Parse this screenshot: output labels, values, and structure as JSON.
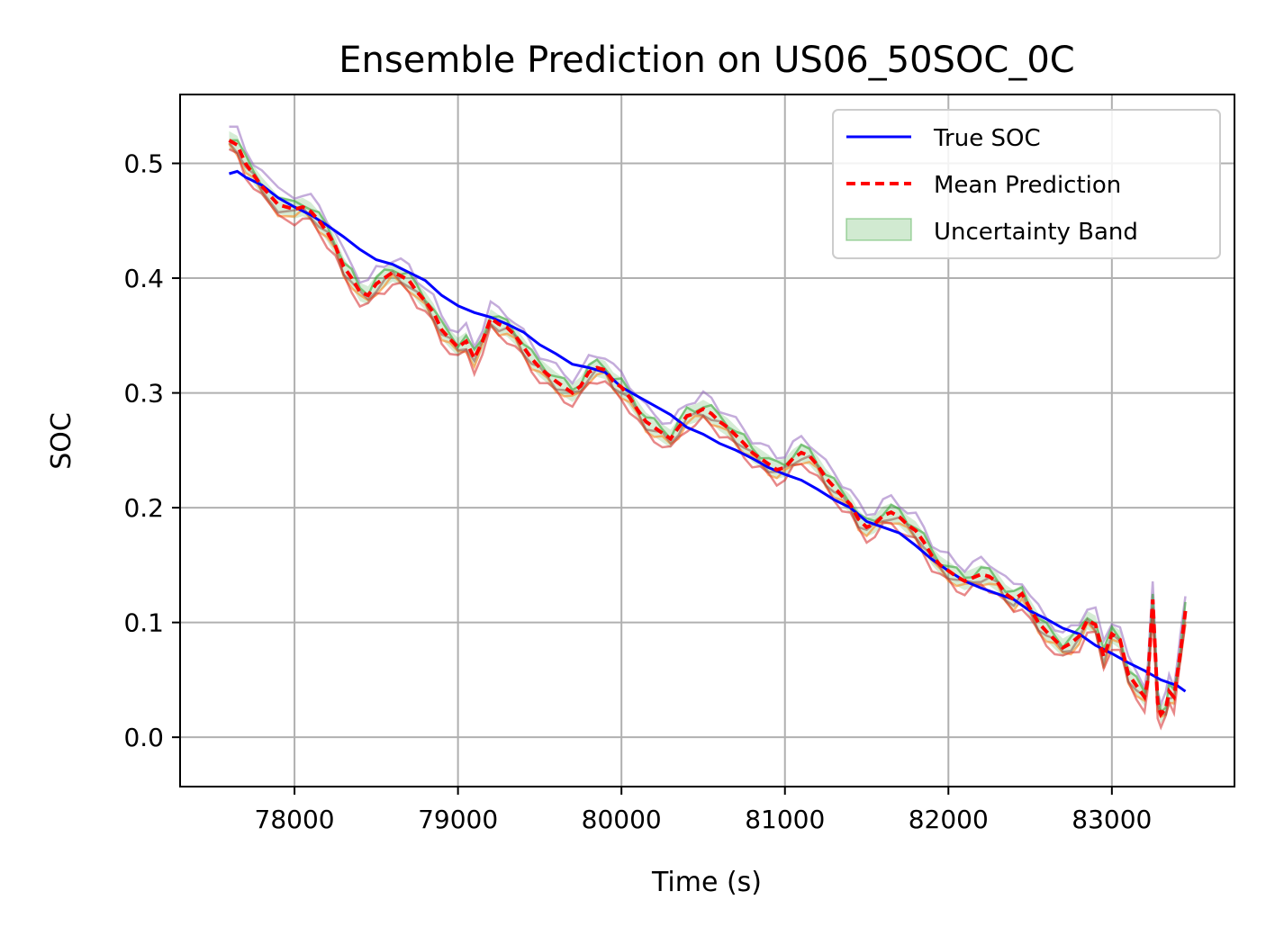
{
  "chart_data": {
    "type": "line",
    "title": "Ensemble Prediction on US06_50SOC_0C",
    "xlabel": "Time (s)",
    "ylabel": "SOC",
    "xlim": [
      77300,
      83750
    ],
    "ylim": [
      -0.043,
      0.56
    ],
    "xticks": [
      78000,
      79000,
      80000,
      81000,
      82000,
      83000
    ],
    "yticks": [
      0.0,
      0.1,
      0.2,
      0.3,
      0.4,
      0.5
    ],
    "ytick_labels": [
      "0.0",
      "0.1",
      "0.2",
      "0.3",
      "0.4",
      "0.5"
    ],
    "grid": true,
    "legend_position": "top-right",
    "legend": [
      {
        "label": "True SOC",
        "style": "solid",
        "color": "#0000ff"
      },
      {
        "label": "Mean Prediction",
        "style": "dashed",
        "color": "#ff0000"
      },
      {
        "label": "Uncertainty Band",
        "style": "patch",
        "color": "#2ca02c"
      }
    ],
    "true_soc": {
      "name": "True SOC",
      "color": "#0000ff",
      "x": [
        77600,
        77650,
        77700,
        77800,
        77900,
        78000,
        78100,
        78200,
        78300,
        78400,
        78500,
        78600,
        78700,
        78800,
        78900,
        79000,
        79100,
        79200,
        79300,
        79400,
        79500,
        79600,
        79700,
        79800,
        79900,
        80000,
        80100,
        80200,
        80300,
        80400,
        80500,
        80600,
        80700,
        80800,
        80900,
        81000,
        81100,
        81200,
        81300,
        81400,
        81500,
        81600,
        81700,
        81800,
        81900,
        82000,
        82100,
        82200,
        82300,
        82400,
        82500,
        82600,
        82700,
        82800,
        82900,
        83000,
        83100,
        83200,
        83300,
        83400,
        83450
      ],
      "y": [
        0.491,
        0.493,
        0.488,
        0.481,
        0.47,
        0.462,
        0.455,
        0.446,
        0.436,
        0.425,
        0.416,
        0.412,
        0.405,
        0.398,
        0.385,
        0.376,
        0.37,
        0.366,
        0.36,
        0.353,
        0.342,
        0.334,
        0.325,
        0.322,
        0.318,
        0.305,
        0.297,
        0.289,
        0.281,
        0.27,
        0.264,
        0.256,
        0.25,
        0.243,
        0.235,
        0.229,
        0.224,
        0.216,
        0.207,
        0.2,
        0.188,
        0.183,
        0.178,
        0.167,
        0.155,
        0.145,
        0.136,
        0.13,
        0.125,
        0.12,
        0.11,
        0.103,
        0.095,
        0.09,
        0.08,
        0.073,
        0.065,
        0.058,
        0.05,
        0.045,
        0.04
      ]
    },
    "mean_prediction": {
      "name": "Mean Prediction",
      "color": "#ff0000",
      "x": [
        77600,
        77650,
        77700,
        77750,
        77800,
        77900,
        78000,
        78050,
        78100,
        78150,
        78200,
        78250,
        78300,
        78350,
        78400,
        78450,
        78500,
        78550,
        78600,
        78650,
        78700,
        78750,
        78800,
        78850,
        78900,
        78950,
        79000,
        79050,
        79100,
        79150,
        79200,
        79250,
        79300,
        79350,
        79400,
        79450,
        79500,
        79550,
        79600,
        79650,
        79700,
        79750,
        79800,
        79850,
        79900,
        79950,
        80000,
        80050,
        80100,
        80150,
        80200,
        80250,
        80300,
        80350,
        80400,
        80450,
        80500,
        80550,
        80600,
        80650,
        80700,
        80750,
        80800,
        80850,
        80900,
        80950,
        81000,
        81050,
        81100,
        81150,
        81200,
        81250,
        81300,
        81350,
        81400,
        81450,
        81500,
        81550,
        81600,
        81650,
        81700,
        81750,
        81800,
        81850,
        81900,
        81950,
        82000,
        82050,
        82100,
        82150,
        82200,
        82250,
        82300,
        82350,
        82400,
        82450,
        82500,
        82550,
        82600,
        82650,
        82700,
        82750,
        82800,
        82850,
        82900,
        82950,
        83000,
        83050,
        83100,
        83150,
        83200,
        83220,
        83250,
        83280,
        83300,
        83330,
        83350,
        83380,
        83400,
        83420,
        83450
      ],
      "y": [
        0.52,
        0.516,
        0.5,
        0.49,
        0.48,
        0.464,
        0.46,
        0.462,
        0.458,
        0.45,
        0.44,
        0.428,
        0.41,
        0.4,
        0.388,
        0.385,
        0.395,
        0.4,
        0.405,
        0.402,
        0.398,
        0.388,
        0.38,
        0.37,
        0.355,
        0.347,
        0.34,
        0.345,
        0.33,
        0.345,
        0.365,
        0.36,
        0.357,
        0.35,
        0.34,
        0.33,
        0.322,
        0.316,
        0.31,
        0.305,
        0.3,
        0.306,
        0.318,
        0.322,
        0.32,
        0.31,
        0.305,
        0.296,
        0.285,
        0.275,
        0.27,
        0.265,
        0.26,
        0.27,
        0.28,
        0.282,
        0.286,
        0.282,
        0.275,
        0.27,
        0.263,
        0.256,
        0.248,
        0.243,
        0.238,
        0.233,
        0.235,
        0.243,
        0.248,
        0.245,
        0.237,
        0.226,
        0.218,
        0.21,
        0.203,
        0.19,
        0.183,
        0.186,
        0.193,
        0.196,
        0.192,
        0.185,
        0.18,
        0.17,
        0.158,
        0.15,
        0.145,
        0.14,
        0.136,
        0.139,
        0.142,
        0.14,
        0.135,
        0.125,
        0.12,
        0.125,
        0.112,
        0.1,
        0.092,
        0.085,
        0.078,
        0.082,
        0.088,
        0.102,
        0.098,
        0.07,
        0.09,
        0.085,
        0.055,
        0.045,
        0.035,
        0.05,
        0.12,
        0.03,
        0.02,
        0.025,
        0.04,
        0.035,
        0.055,
        0.075,
        0.11
      ]
    },
    "ensemble_members": [
      {
        "color": "#9467bd",
        "offset": 0.012
      },
      {
        "color": "#ff7f0e",
        "offset": -0.006
      },
      {
        "color": "#2ca02c",
        "offset": 0.004
      },
      {
        "color": "#d62728",
        "offset": -0.01
      },
      {
        "color": "#8c564b",
        "offset": -0.003
      }
    ],
    "uncertainty_band": {
      "name": "Uncertainty Band",
      "color": "#2ca02c",
      "halfwidth": 0.008
    }
  }
}
